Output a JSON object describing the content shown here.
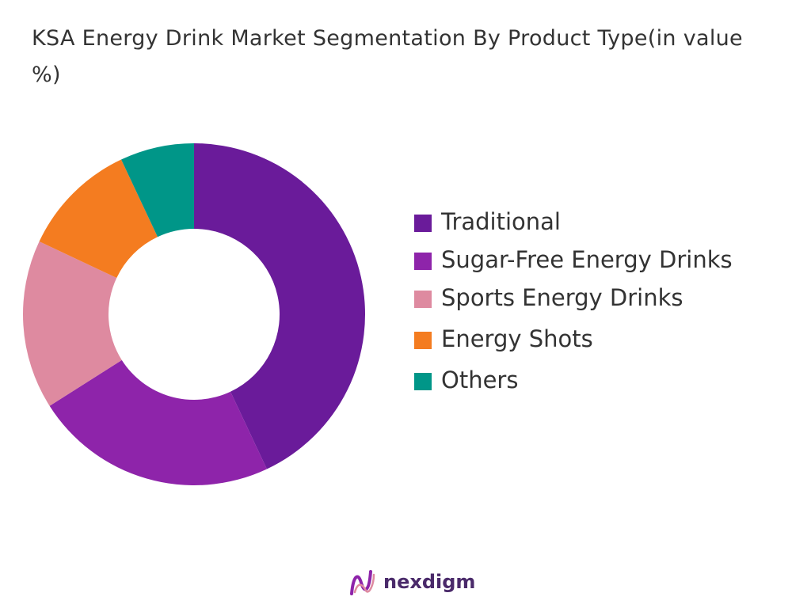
{
  "chart_data": {
    "type": "donut",
    "title": "KSA Energy Drink Market Segmentation By Product Type(in value %)",
    "categories": [
      "Traditional",
      "Sugar-Free Energy Drinks",
      "Sports Energy Drinks",
      "Energy Shots",
      "Others"
    ],
    "values": [
      43,
      23,
      16,
      11,
      7
    ],
    "colors": [
      "#6a1b9a",
      "#8e24aa",
      "#de8aa0",
      "#f47c20",
      "#009688"
    ],
    "legend": "right"
  },
  "brand": "nexdigm"
}
